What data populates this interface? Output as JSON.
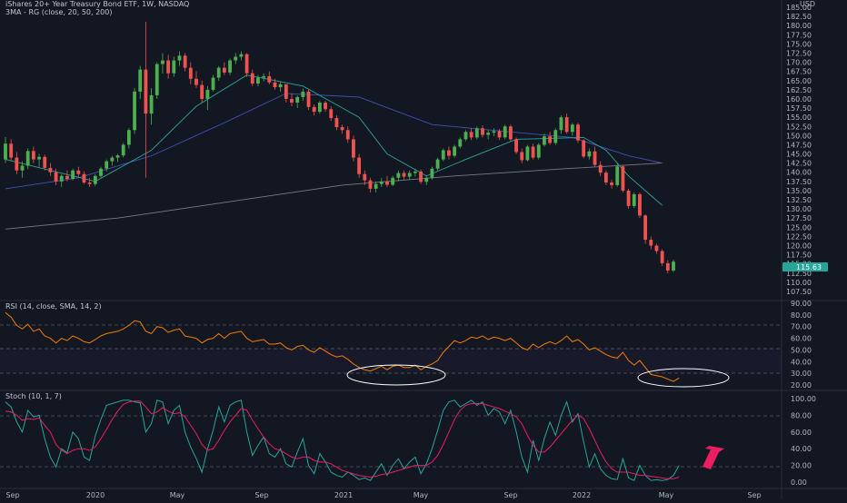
{
  "header": {
    "symbol_title": "iShares 20+ Year Treasury Bond ETF, 1W, NASDAQ",
    "sma_label": "3MA - RG (close, 20, 50, 200)",
    "currency": "USD"
  },
  "price_axis": {
    "ticks": [
      "185.00",
      "182.50",
      "180.00",
      "177.50",
      "175.00",
      "172.50",
      "170.00",
      "167.50",
      "165.00",
      "162.50",
      "160.00",
      "157.50",
      "155.00",
      "152.50",
      "150.00",
      "147.50",
      "145.00",
      "142.50",
      "140.00",
      "137.50",
      "135.00",
      "132.50",
      "130.00",
      "127.50",
      "125.00",
      "122.50",
      "120.00",
      "117.50",
      "115.00",
      "112.50",
      "110.00",
      "107.50"
    ],
    "current_price": "115.63",
    "current_price_color": "#26a69a"
  },
  "rsi_panel": {
    "label": "RSI (14, close, SMA, 14, 2)",
    "ticks": [
      "90.00",
      "80.00",
      "70.00",
      "60.00",
      "50.00",
      "40.00",
      "30.00",
      "20.00"
    ]
  },
  "stoch_panel": {
    "label": "Stoch (10, 1, 7)",
    "ticks": [
      "100.00",
      "80.00",
      "60.00",
      "40.00",
      "20.00",
      "0.00"
    ]
  },
  "time_axis": {
    "labels": [
      "Sep",
      "2020",
      "May",
      "Sep",
      "2021",
      "May",
      "Sep",
      "2022",
      "May",
      "Sep"
    ]
  },
  "colors": {
    "background": "#131722",
    "bull": "#26a69a",
    "bull_candle": "#4caf50",
    "bear": "#ef5350",
    "sma20": "#26a69a",
    "sma50": "#3f51b5",
    "sma200": "#787b86",
    "rsi_line": "#f57c00",
    "stoch_k": "#26a69a",
    "stoch_d": "#e91e63",
    "arrow": "#e91e63",
    "ellipse": "#ffffff"
  },
  "chart_data": {
    "type": "candlestick",
    "interval": "1W",
    "price_range": [
      106,
      187
    ],
    "candles_ohlc": [
      [
        143.5,
        149.6,
        142.5,
        147.8
      ],
      [
        147.8,
        149.0,
        143.0,
        144.0
      ],
      [
        144.0,
        145.5,
        139.5,
        140.5
      ],
      [
        140.5,
        143.0,
        138.5,
        141.8
      ],
      [
        141.8,
        146.5,
        140.8,
        145.8
      ],
      [
        145.8,
        147.0,
        142.5,
        143.5
      ],
      [
        143.5,
        145.0,
        141.5,
        144.2
      ],
      [
        144.2,
        144.8,
        140.5,
        141.2
      ],
      [
        141.2,
        142.5,
        139.0,
        140.0
      ],
      [
        140.0,
        141.0,
        136.5,
        137.5
      ],
      [
        137.5,
        139.5,
        136.0,
        139.0
      ],
      [
        139.0,
        140.5,
        137.5,
        138.2
      ],
      [
        138.2,
        141.0,
        137.8,
        140.5
      ],
      [
        140.5,
        141.5,
        138.5,
        139.5
      ],
      [
        139.5,
        140.2,
        136.8,
        137.2
      ],
      [
        137.2,
        138.5,
        136.0,
        136.8
      ],
      [
        136.8,
        139.5,
        136.2,
        139.0
      ],
      [
        139.0,
        141.5,
        138.5,
        141.0
      ],
      [
        141.0,
        143.5,
        140.2,
        143.0
      ],
      [
        143.0,
        144.5,
        141.8,
        144.0
      ],
      [
        144.0,
        145.0,
        142.8,
        144.6
      ],
      [
        144.6,
        148.0,
        144.0,
        147.5
      ],
      [
        147.5,
        152.0,
        146.5,
        151.5
      ],
      [
        151.5,
        163.0,
        150.5,
        162.0
      ],
      [
        162.0,
        169.0,
        160.0,
        168.0
      ],
      [
        168.0,
        181.0,
        138.5,
        156.0
      ],
      [
        156.0,
        163.0,
        153.0,
        161.0
      ],
      [
        161.0,
        170.0,
        160.0,
        169.5
      ],
      [
        169.5,
        172.5,
        167.0,
        170.5
      ],
      [
        170.5,
        172.0,
        165.5,
        167.0
      ],
      [
        167.0,
        171.5,
        166.0,
        170.5
      ],
      [
        170.5,
        173.0,
        169.0,
        171.8
      ],
      [
        171.8,
        172.5,
        167.5,
        168.5
      ],
      [
        168.5,
        170.0,
        164.0,
        165.5
      ],
      [
        165.5,
        167.5,
        163.0,
        163.8
      ],
      [
        163.8,
        165.0,
        159.0,
        160.0
      ],
      [
        160.0,
        163.5,
        157.0,
        162.5
      ],
      [
        162.5,
        166.5,
        162.0,
        165.8
      ],
      [
        165.8,
        169.0,
        165.0,
        168.5
      ],
      [
        168.5,
        170.0,
        166.5,
        167.2
      ],
      [
        167.2,
        171.0,
        166.5,
        170.5
      ],
      [
        170.5,
        172.5,
        169.5,
        171.5
      ],
      [
        171.5,
        173.0,
        170.5,
        172.2
      ],
      [
        172.2,
        172.5,
        166.0,
        167.0
      ],
      [
        167.0,
        168.0,
        163.5,
        164.2
      ],
      [
        164.2,
        166.5,
        163.5,
        165.8
      ],
      [
        165.8,
        167.0,
        164.8,
        166.2
      ],
      [
        166.2,
        167.5,
        164.0,
        164.5
      ],
      [
        164.5,
        165.5,
        162.5,
        163.2
      ],
      [
        163.2,
        164.8,
        162.0,
        164.0
      ],
      [
        164.0,
        163.5,
        159.0,
        160.0
      ],
      [
        160.0,
        161.5,
        158.0,
        159.0
      ],
      [
        159.0,
        161.0,
        157.5,
        160.5
      ],
      [
        160.5,
        162.8,
        159.5,
        162.0
      ],
      [
        162.0,
        162.5,
        157.0,
        157.8
      ],
      [
        157.8,
        158.5,
        155.5,
        156.5
      ],
      [
        156.5,
        159.5,
        156.0,
        159.0
      ],
      [
        159.0,
        159.5,
        156.5,
        157.2
      ],
      [
        157.2,
        158.0,
        154.0,
        154.8
      ],
      [
        154.8,
        155.5,
        151.5,
        152.3
      ],
      [
        152.3,
        153.0,
        150.5,
        151.5
      ],
      [
        151.5,
        152.5,
        148.0,
        149.0
      ],
      [
        149.0,
        150.0,
        143.0,
        144.0
      ],
      [
        144.0,
        145.0,
        138.5,
        139.5
      ],
      [
        139.5,
        140.5,
        136.5,
        137.8
      ],
      [
        137.8,
        138.5,
        134.5,
        135.5
      ],
      [
        135.5,
        137.5,
        134.5,
        136.8
      ],
      [
        136.8,
        138.5,
        136.0,
        137.5
      ],
      [
        137.5,
        139.0,
        136.0,
        136.6
      ],
      [
        136.6,
        139.0,
        136.2,
        138.5
      ],
      [
        138.5,
        140.5,
        137.5,
        139.8
      ],
      [
        139.8,
        140.5,
        138.0,
        138.8
      ],
      [
        138.8,
        140.5,
        138.0,
        139.8
      ],
      [
        139.8,
        141.0,
        138.8,
        140.2
      ],
      [
        140.2,
        140.8,
        136.8,
        137.4
      ],
      [
        137.4,
        139.0,
        136.5,
        138.5
      ],
      [
        138.5,
        141.5,
        138.0,
        141.0
      ],
      [
        141.0,
        144.0,
        140.5,
        143.5
      ],
      [
        143.5,
        146.5,
        143.0,
        146.0
      ],
      [
        146.0,
        147.0,
        143.5,
        144.5
      ],
      [
        144.5,
        147.5,
        144.0,
        147.0
      ],
      [
        147.0,
        149.5,
        146.5,
        149.0
      ],
      [
        149.0,
        151.5,
        148.5,
        151.0
      ],
      [
        151.0,
        152.0,
        148.8,
        149.5
      ],
      [
        149.5,
        152.5,
        149.0,
        152.0
      ],
      [
        152.0,
        152.8,
        149.5,
        150.2
      ],
      [
        150.2,
        151.5,
        149.0,
        150.8
      ],
      [
        150.8,
        152.0,
        149.8,
        151.2
      ],
      [
        151.2,
        151.8,
        148.8,
        149.5
      ],
      [
        149.5,
        153.0,
        149.0,
        152.5
      ],
      [
        152.5,
        153.0,
        148.5,
        149.0
      ],
      [
        149.0,
        149.5,
        145.0,
        145.5
      ],
      [
        145.5,
        146.5,
        142.5,
        143.3
      ],
      [
        143.3,
        147.5,
        143.0,
        147.0
      ],
      [
        147.0,
        147.8,
        143.5,
        144.0
      ],
      [
        144.0,
        148.0,
        143.5,
        147.5
      ],
      [
        147.5,
        150.5,
        147.0,
        149.8
      ],
      [
        149.8,
        151.0,
        147.5,
        148.0
      ],
      [
        148.0,
        152.0,
        147.5,
        151.5
      ],
      [
        151.5,
        155.5,
        150.5,
        155.0
      ],
      [
        155.0,
        156.0,
        150.5,
        151.0
      ],
      [
        151.0,
        153.5,
        150.0,
        153.0
      ],
      [
        153.0,
        153.5,
        148.0,
        148.7
      ],
      [
        148.7,
        149.0,
        143.8,
        144.3
      ],
      [
        144.3,
        146.5,
        143.5,
        145.7
      ],
      [
        145.7,
        147.0,
        141.5,
        142.0
      ],
      [
        142.0,
        143.0,
        139.0,
        139.9
      ],
      [
        139.9,
        140.5,
        136.5,
        137.2
      ],
      [
        137.2,
        138.0,
        135.5,
        136.5
      ],
      [
        136.5,
        142.5,
        136.0,
        141.6
      ],
      [
        141.6,
        142.0,
        134.5,
        135.0
      ],
      [
        135.0,
        135.5,
        130.0,
        130.8
      ],
      [
        130.8,
        134.5,
        130.2,
        134.0
      ],
      [
        134.0,
        134.5,
        127.5,
        128.2
      ],
      [
        128.2,
        128.5,
        120.5,
        121.6
      ],
      [
        121.6,
        122.5,
        119.0,
        120.0
      ],
      [
        120.0,
        120.5,
        117.8,
        118.5
      ],
      [
        118.5,
        119.0,
        114.5,
        115.2
      ],
      [
        115.2,
        116.0,
        112.5,
        113.2
      ],
      [
        113.2,
        116.2,
        112.8,
        115.63
      ]
    ],
    "rsi_range": [
      15,
      92
    ],
    "rsi_values": [
      82,
      78,
      71,
      68,
      72,
      66,
      68,
      62,
      60,
      56,
      60,
      58,
      62,
      60,
      57,
      56,
      59,
      62,
      64,
      65,
      66,
      68,
      71,
      75,
      74,
      66,
      64,
      70,
      69,
      65,
      67,
      68,
      62,
      61,
      60,
      56,
      59,
      60,
      64,
      60,
      64,
      65,
      66,
      60,
      57,
      58,
      59,
      55,
      55,
      56,
      52,
      50,
      53,
      54,
      50,
      48,
      52,
      49,
      46,
      44,
      45,
      42,
      38,
      35,
      33,
      32,
      34,
      36,
      33,
      36,
      37,
      35,
      35,
      37,
      33,
      36,
      38,
      41,
      48,
      53,
      58,
      56,
      58,
      61,
      60,
      62,
      59,
      61,
      60,
      58,
      60,
      56,
      52,
      50,
      55,
      52,
      55,
      57,
      55,
      58,
      62,
      57,
      59,
      55,
      50,
      52,
      49,
      46,
      44,
      43,
      48,
      41,
      37,
      41,
      35,
      29,
      28,
      27,
      25,
      23,
      26
    ],
    "stoch_range": [
      -8,
      106
    ],
    "stoch_k": [
      96,
      90,
      72,
      60,
      86,
      78,
      80,
      52,
      30,
      18,
      40,
      35,
      60,
      52,
      30,
      26,
      55,
      75,
      92,
      94,
      96,
      98,
      98,
      96,
      95,
      60,
      70,
      98,
      96,
      70,
      86,
      92,
      60,
      42,
      28,
      12,
      40,
      62,
      90,
      72,
      92,
      96,
      98,
      60,
      32,
      44,
      54,
      34,
      30,
      40,
      22,
      18,
      36,
      52,
      20,
      10,
      34,
      24,
      12,
      8,
      6,
      12,
      8,
      3,
      5,
      2,
      12,
      22,
      8,
      20,
      28,
      16,
      24,
      30,
      10,
      22,
      40,
      62,
      86,
      96,
      98,
      90,
      94,
      98,
      92,
      96,
      80,
      88,
      84,
      70,
      86,
      60,
      30,
      12,
      50,
      26,
      52,
      72,
      56,
      80,
      96,
      72,
      82,
      48,
      18,
      34,
      16,
      8,
      4,
      3,
      28,
      5,
      2,
      20,
      8,
      2,
      3,
      2,
      3,
      8,
      20
    ],
    "stoch_d": [
      85,
      84,
      80,
      74,
      76,
      75,
      77,
      68,
      60,
      45,
      38,
      34,
      38,
      40,
      40,
      38,
      42,
      52,
      63,
      75,
      85,
      93,
      96,
      97,
      97,
      90,
      82,
      84,
      89,
      85,
      82,
      83,
      78,
      68,
      58,
      45,
      38,
      40,
      50,
      62,
      72,
      80,
      88,
      86,
      74,
      64,
      54,
      46,
      40,
      38,
      34,
      30,
      28,
      30,
      30,
      26,
      24,
      24,
      22,
      18,
      14,
      12,
      10,
      8,
      7,
      6,
      7,
      9,
      10,
      12,
      14,
      16,
      18,
      20,
      20,
      20,
      24,
      32,
      45,
      60,
      75,
      86,
      92,
      94,
      94,
      94,
      92,
      90,
      88,
      85,
      82,
      78,
      70,
      56,
      44,
      36,
      36,
      42,
      50,
      58,
      66,
      74,
      80,
      76,
      64,
      50,
      36,
      24,
      16,
      12,
      12,
      12,
      10,
      8,
      8,
      7,
      6,
      5,
      4,
      4,
      6
    ],
    "sma_note": "",
    "sma20": [
      [
        0,
        143.5
      ],
      [
        16,
        137.5
      ],
      [
        26,
        146
      ],
      [
        34,
        158
      ],
      [
        43,
        166.5
      ],
      [
        53,
        163.5
      ],
      [
        63,
        155
      ],
      [
        68,
        145
      ],
      [
        75,
        139
      ],
      [
        82,
        143.5
      ],
      [
        91,
        149
      ],
      [
        103,
        149.5
      ],
      [
        107,
        146
      ],
      [
        111,
        139
      ],
      [
        117,
        131
      ]
    ],
    "sma50": [
      [
        0,
        135.5
      ],
      [
        13,
        138.5
      ],
      [
        26,
        144.5
      ],
      [
        39,
        153.5
      ],
      [
        50,
        161.5
      ],
      [
        63,
        160.5
      ],
      [
        76,
        153
      ],
      [
        90,
        151
      ],
      [
        101,
        149.5
      ],
      [
        111,
        144.5
      ],
      [
        117,
        142.5
      ]
    ],
    "sma200": [
      [
        0,
        124.5
      ],
      [
        20,
        127.5
      ],
      [
        40,
        132
      ],
      [
        60,
        136.5
      ],
      [
        80,
        139
      ],
      [
        100,
        141
      ],
      [
        117,
        142.5
      ]
    ]
  }
}
